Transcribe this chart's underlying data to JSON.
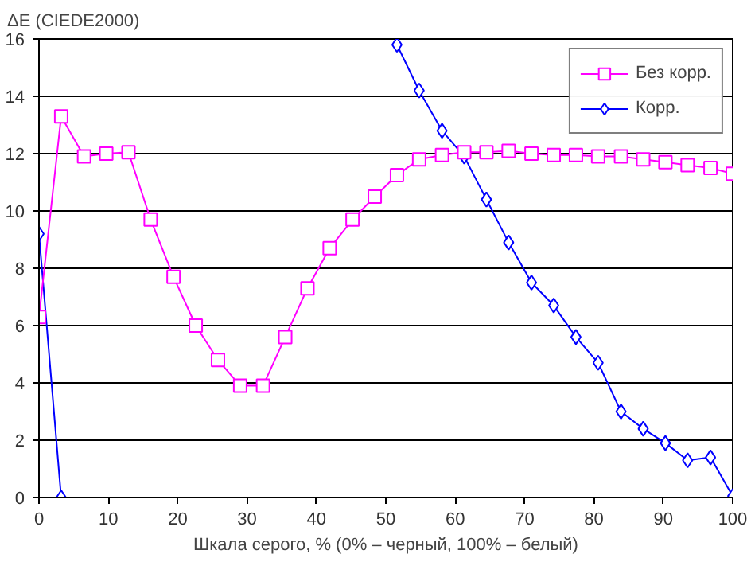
{
  "chart_data": {
    "type": "line",
    "ylabel": "ΔE (CIEDE2000)",
    "xlabel": "Шкала серого, % (0% – черный, 100% – белый)",
    "x": [
      0,
      3.2,
      6.5,
      9.7,
      12.9,
      16.1,
      19.4,
      22.6,
      25.8,
      29,
      32.3,
      35.5,
      38.7,
      41.9,
      45.2,
      48.4,
      51.6,
      54.8,
      58.1,
      61.3,
      64.5,
      67.7,
      71,
      74.2,
      77.4,
      80.6,
      83.9,
      87.1,
      90.3,
      93.5,
      96.8,
      100
    ],
    "series": [
      {
        "name": "Без корр.",
        "color": "#ff00ff",
        "marker": "square",
        "values": [
          6.3,
          13.3,
          11.9,
          12.0,
          12.05,
          9.7,
          7.7,
          6.0,
          4.8,
          3.9,
          3.9,
          5.6,
          7.3,
          8.7,
          9.7,
          10.5,
          11.25,
          11.8,
          11.95,
          12.05,
          12.05,
          12.1,
          12.0,
          11.95,
          11.95,
          11.9,
          11.9,
          11.8,
          11.7,
          11.6,
          11.5,
          11.3
        ]
      },
      {
        "name": "Корр.",
        "color": "#0000ff",
        "marker": "diamond",
        "values": [
          9.2,
          0,
          null,
          null,
          null,
          null,
          null,
          null,
          null,
          null,
          null,
          null,
          null,
          null,
          null,
          null,
          15.8,
          14.2,
          12.8,
          11.9,
          10.4,
          8.9,
          7.5,
          6.7,
          5.6,
          4.7,
          3.0,
          2.4,
          1.9,
          1.3,
          1.4,
          0.05
        ]
      }
    ],
    "xlim": [
      0,
      100
    ],
    "xticks": [
      0,
      10,
      20,
      30,
      40,
      50,
      60,
      70,
      80,
      90,
      100
    ],
    "ylim": [
      0,
      16
    ],
    "yticks": [
      0,
      2,
      4,
      6,
      8,
      10,
      12,
      14,
      16
    ],
    "grid": "y",
    "legend": "top right",
    "line_style": "solid"
  }
}
